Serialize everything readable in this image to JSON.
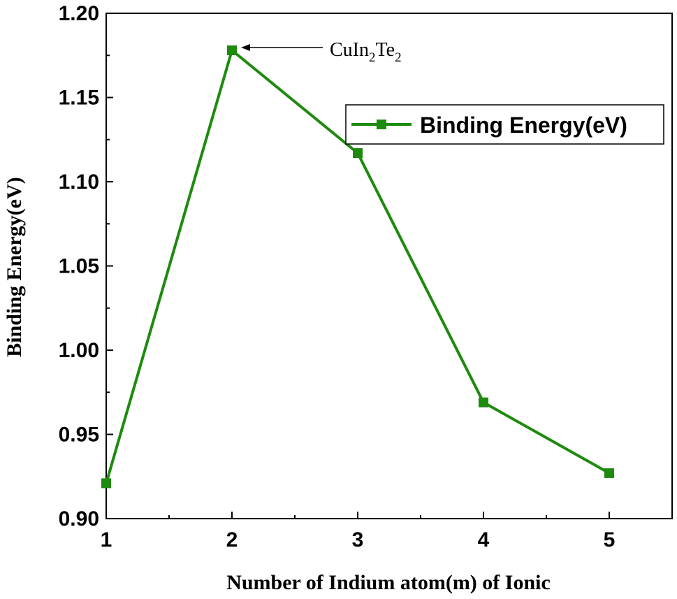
{
  "chart_data": {
    "type": "line",
    "x": [
      1,
      2,
      3,
      4,
      5
    ],
    "series": [
      {
        "name": "Binding Energy(eV)",
        "values": [
          0.921,
          1.178,
          1.117,
          0.969,
          0.927
        ],
        "color": "#1e8a0e"
      }
    ],
    "xlabel": "Number of Indium atom(m) of Ionic",
    "ylabel": "Binding Energy(eV)",
    "xlim": [
      1,
      5.5
    ],
    "ylim": [
      0.9,
      1.2
    ],
    "x_ticks": [
      "1",
      "2",
      "3",
      "4",
      "5"
    ],
    "y_ticks": [
      "0.90",
      "0.95",
      "1.00",
      "1.05",
      "1.10",
      "1.15",
      "1.20"
    ],
    "grid": false,
    "legend_position": "top-right",
    "annotation": {
      "parts": [
        {
          "text": "CuIn",
          "sub": false
        },
        {
          "text": "2",
          "sub": true
        },
        {
          "text": "Te",
          "sub": false
        },
        {
          "text": "2",
          "sub": true
        }
      ],
      "x": 2,
      "y": 1.178
    }
  }
}
